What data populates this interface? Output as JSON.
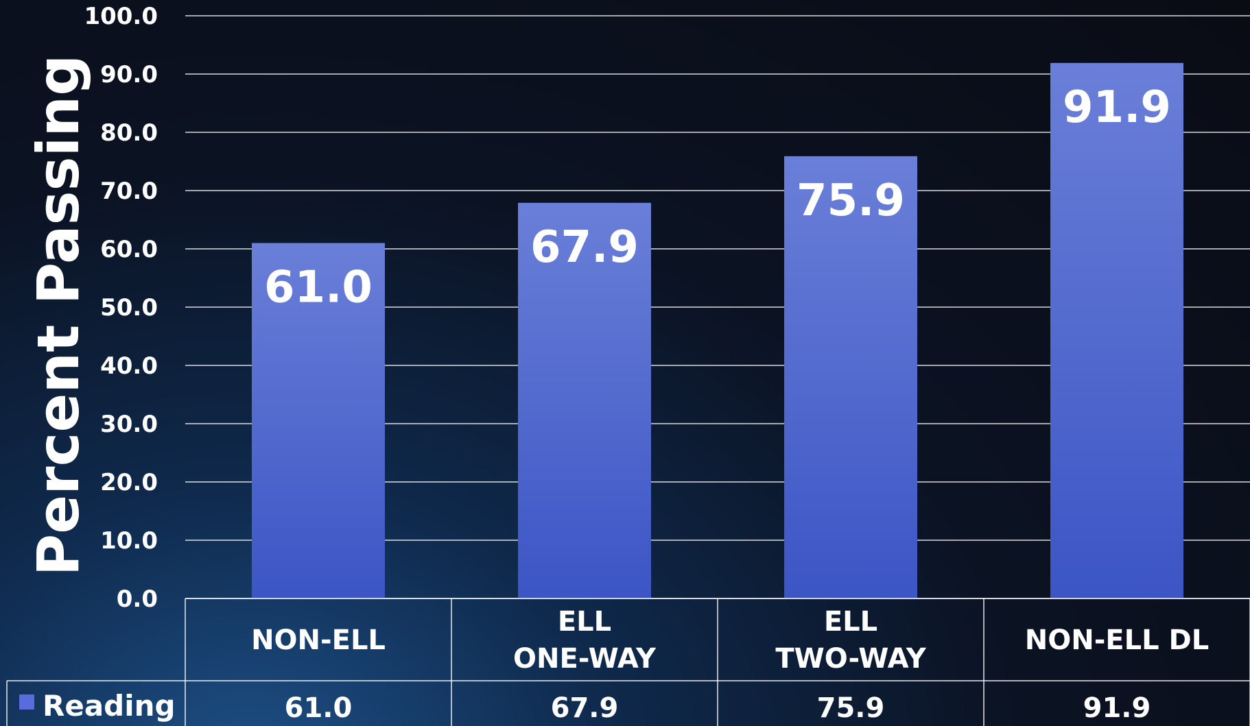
{
  "chart_data": {
    "type": "bar",
    "title": "",
    "xlabel": "",
    "ylabel": "Percent Passing",
    "ylim": [
      0,
      100
    ],
    "yticks": [
      "0.0",
      "10.0",
      "20.0",
      "30.0",
      "40.0",
      "50.0",
      "60.0",
      "70.0",
      "80.0",
      "90.0",
      "100.0"
    ],
    "categories": [
      [
        "NON-ELL"
      ],
      [
        "ELL",
        "ONE-WAY"
      ],
      [
        "ELL",
        "TWO-WAY"
      ],
      [
        "NON-ELL DL"
      ]
    ],
    "series": [
      {
        "name": "Reading",
        "values": [
          61.0,
          67.9,
          75.9,
          91.9
        ],
        "value_labels": [
          "61.0",
          "67.9",
          "75.9",
          "91.9"
        ]
      }
    ],
    "grid": true,
    "legend": "data-table",
    "colors": {
      "bar_top": "#6a7fd8",
      "bar_bottom": "#3c55c5",
      "legend_key": "#5a6bdc",
      "grid": "#ffffff",
      "text": "#ffffff"
    }
  }
}
